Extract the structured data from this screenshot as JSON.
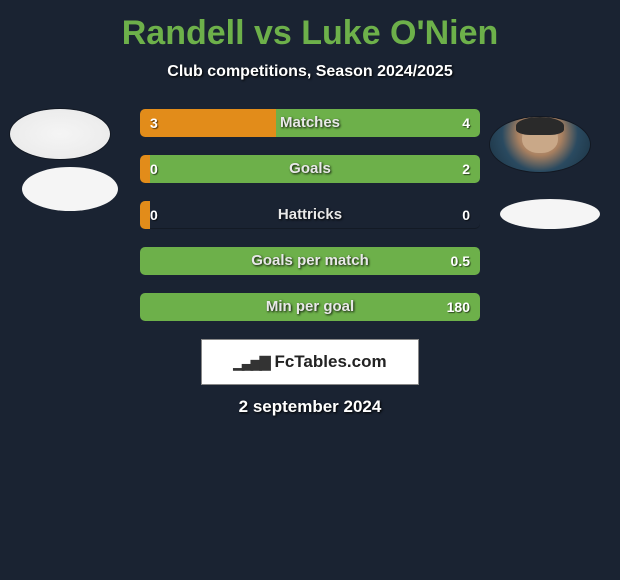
{
  "title": "Randell vs Luke O'Nien",
  "subtitle": "Club competitions, Season 2024/2025",
  "date": "2 september 2024",
  "logo_text": "FcTables.com",
  "colors": {
    "left": "#e28c1a",
    "right": "#6db04a",
    "bg": "#1a2332"
  },
  "rows": [
    {
      "label": "Matches",
      "left_val": "3",
      "right_val": "4",
      "left_pct": 40,
      "right_pct": 60
    },
    {
      "label": "Goals",
      "left_val": "0",
      "right_val": "2",
      "left_pct": 3,
      "right_pct": 97
    },
    {
      "label": "Hattricks",
      "left_val": "0",
      "right_val": "0",
      "left_pct": 3,
      "right_pct": 0
    },
    {
      "label": "Goals per match",
      "left_val": "",
      "right_val": "0.5",
      "left_pct": 0,
      "right_pct": 100
    },
    {
      "label": "Min per goal",
      "left_val": "",
      "right_val": "180",
      "left_pct": 0,
      "right_pct": 100
    }
  ]
}
